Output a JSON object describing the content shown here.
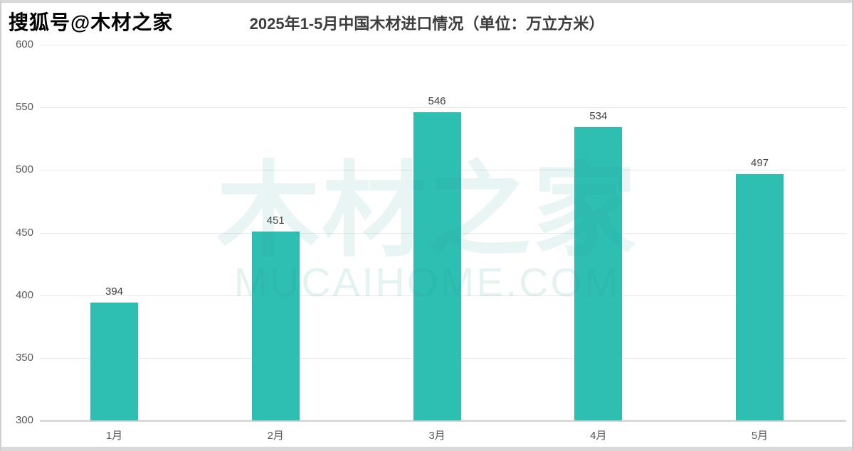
{
  "brand": {
    "text": "搜狐号@木材之家"
  },
  "watermark": {
    "text": "木材之家",
    "domain": "MUCAIHOME.COM"
  },
  "chart_data": {
    "type": "bar",
    "title": "2025年1-5月中国木材进口情况（单位：万立方米）",
    "categories": [
      "1月",
      "2月",
      "3月",
      "4月",
      "5月"
    ],
    "values": [
      394,
      451,
      546,
      534,
      497
    ],
    "unit": "万立方米",
    "ylim": [
      300,
      600
    ],
    "yticks": [
      600,
      550,
      500,
      450,
      400,
      350,
      300
    ],
    "grid": true,
    "legend": "none",
    "bar_color": "#2fbeb2",
    "grid_color": "#e8e8e8",
    "axis_label_color": "#595959",
    "value_label_color": "#3f3f3f"
  }
}
